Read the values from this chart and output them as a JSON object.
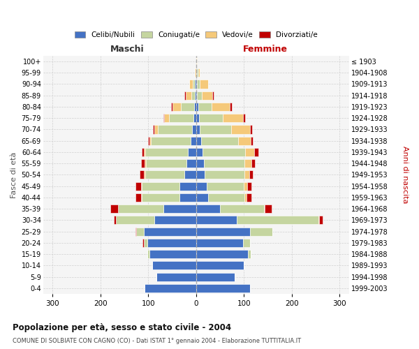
{
  "age_groups_bottom_to_top": [
    "0-4",
    "5-9",
    "10-14",
    "15-19",
    "20-24",
    "25-29",
    "30-34",
    "35-39",
    "40-44",
    "45-49",
    "50-54",
    "55-59",
    "60-64",
    "65-69",
    "70-74",
    "75-79",
    "80-84",
    "85-89",
    "90-94",
    "95-99",
    "100+"
  ],
  "birth_years_bottom_to_top": [
    "1999-2003",
    "1994-1998",
    "1989-1993",
    "1984-1988",
    "1979-1983",
    "1974-1978",
    "1969-1973",
    "1964-1968",
    "1959-1963",
    "1954-1958",
    "1949-1953",
    "1944-1948",
    "1939-1943",
    "1934-1938",
    "1929-1933",
    "1924-1928",
    "1919-1923",
    "1914-1918",
    "1909-1913",
    "1904-1908",
    "≤ 1903"
  ],
  "males_celibi": [
    108,
    83,
    92,
    98,
    102,
    110,
    88,
    68,
    35,
    35,
    25,
    20,
    18,
    12,
    8,
    5,
    4,
    2,
    2,
    0,
    0
  ],
  "males_coniugati": [
    0,
    0,
    0,
    4,
    8,
    15,
    80,
    95,
    78,
    78,
    82,
    85,
    88,
    82,
    72,
    52,
    28,
    8,
    5,
    0,
    0
  ],
  "males_vedovi": [
    0,
    0,
    0,
    0,
    0,
    0,
    0,
    0,
    2,
    2,
    2,
    3,
    3,
    4,
    8,
    10,
    18,
    12,
    8,
    2,
    0
  ],
  "males_divorziati": [
    0,
    0,
    0,
    0,
    2,
    2,
    4,
    16,
    12,
    12,
    9,
    7,
    4,
    3,
    3,
    2,
    2,
    2,
    0,
    0,
    0
  ],
  "females_nubili": [
    112,
    80,
    100,
    108,
    98,
    112,
    85,
    50,
    25,
    22,
    18,
    16,
    14,
    10,
    8,
    6,
    4,
    2,
    2,
    2,
    0
  ],
  "females_coniugate": [
    0,
    0,
    0,
    6,
    15,
    48,
    170,
    92,
    76,
    78,
    83,
    85,
    88,
    78,
    65,
    50,
    28,
    10,
    5,
    2,
    0
  ],
  "females_vedove": [
    0,
    0,
    0,
    0,
    0,
    0,
    2,
    2,
    5,
    7,
    10,
    14,
    20,
    26,
    40,
    42,
    38,
    22,
    18,
    4,
    2
  ],
  "females_divorziate": [
    0,
    0,
    0,
    0,
    0,
    0,
    7,
    14,
    9,
    9,
    7,
    8,
    8,
    4,
    4,
    5,
    4,
    2,
    0,
    0,
    0
  ],
  "color_celibi": "#4472C4",
  "color_coniugati": "#C5D5A0",
  "color_vedovi": "#F5C97A",
  "color_divorziati": "#C00000",
  "xlim": 320,
  "title": "Popolazione per età, sesso e stato civile - 2004",
  "subtitle": "COMUNE DI SOLBIATE CON CAGNO (CO) - Dati ISTAT 1° gennaio 2004 - Elaborazione TUTTITALIA.IT",
  "ylabel_left": "Fasce di età",
  "ylabel_right": "Anni di nascita",
  "label_males": "Maschi",
  "label_females": "Femmine",
  "legend_labels": [
    "Celibi/Nubili",
    "Coniugati/e",
    "Vedovi/e",
    "Divorziati/e"
  ]
}
